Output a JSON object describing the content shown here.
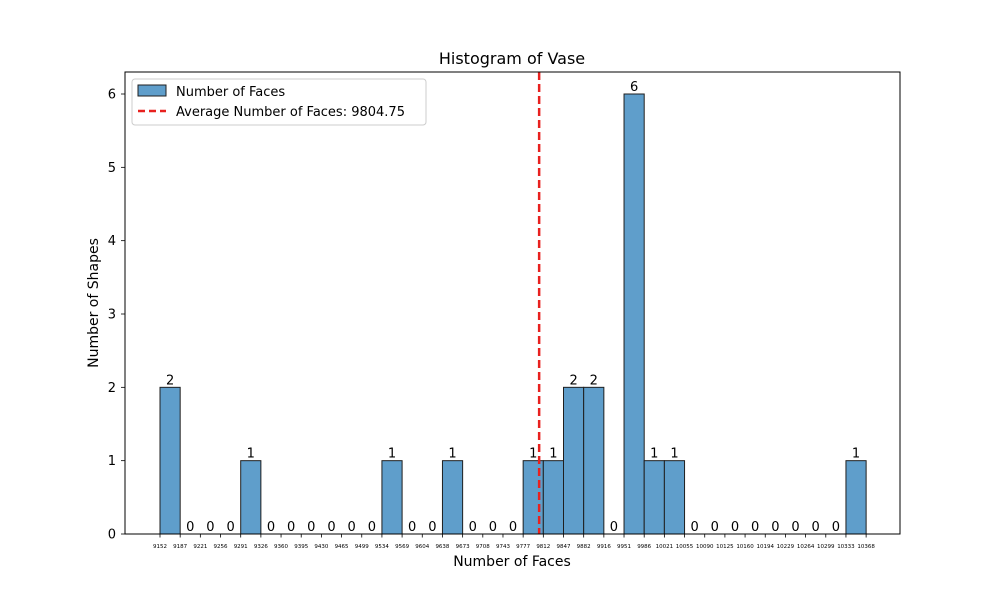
{
  "chart_data": {
    "type": "bar",
    "title": "Histogram of Vase",
    "xlabel": "Number of Faces",
    "ylabel": "Number of Shapes",
    "ylim": [
      0,
      6.3
    ],
    "yticks": [
      "0",
      "1",
      "2",
      "3",
      "4",
      "5",
      "6"
    ],
    "bin_edges": [
      9152,
      9187,
      9221,
      9256,
      9291,
      9326,
      9360,
      9395,
      9430,
      9465,
      9499,
      9534,
      9569,
      9604,
      9638,
      9673,
      9708,
      9743,
      9777,
      9812,
      9847,
      9882,
      9916,
      9951,
      9986,
      10021,
      10055,
      10090,
      10125,
      10160,
      10194,
      10229,
      10264,
      10299,
      10333,
      10368
    ],
    "values": [
      2,
      0,
      0,
      0,
      1,
      0,
      0,
      0,
      0,
      0,
      0,
      1,
      0,
      0,
      1,
      0,
      0,
      0,
      1,
      1,
      2,
      2,
      0,
      6,
      1,
      1,
      0,
      0,
      0,
      0,
      0,
      0,
      0,
      0,
      1
    ],
    "bar_color": "#5f9ecb",
    "bar_edge_color": "#1f1f1f",
    "mean_line": {
      "value": 9804.75,
      "color": "#e8211f",
      "style": "dashed"
    },
    "legend": {
      "placement": "top-left",
      "entries": [
        {
          "label": "Number of Faces"
        },
        {
          "label": "Average Number of Faces: 9804.75"
        }
      ]
    },
    "grid": false
  }
}
